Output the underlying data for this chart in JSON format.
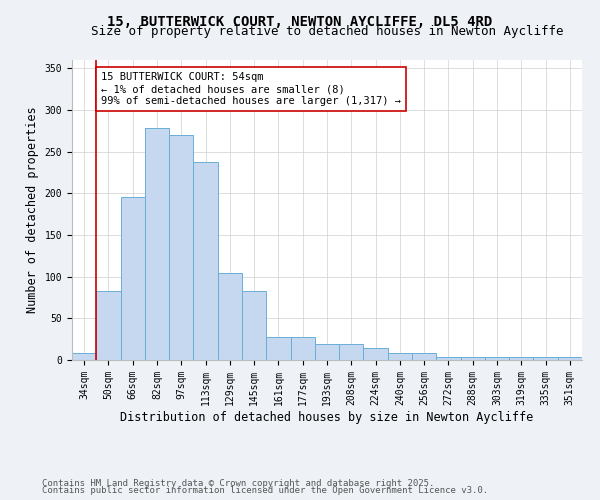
{
  "title1": "15, BUTTERWICK COURT, NEWTON AYCLIFFE, DL5 4RD",
  "title2": "Size of property relative to detached houses in Newton Aycliffe",
  "xlabel": "Distribution of detached houses by size in Newton Aycliffe",
  "ylabel": "Number of detached properties",
  "categories": [
    "34sqm",
    "50sqm",
    "66sqm",
    "82sqm",
    "97sqm",
    "113sqm",
    "129sqm",
    "145sqm",
    "161sqm",
    "177sqm",
    "193sqm",
    "208sqm",
    "224sqm",
    "240sqm",
    "256sqm",
    "272sqm",
    "288sqm",
    "303sqm",
    "319sqm",
    "335sqm",
    "351sqm"
  ],
  "values": [
    8,
    83,
    196,
    278,
    270,
    238,
    104,
    83,
    28,
    28,
    19,
    19,
    15,
    8,
    8,
    4,
    4,
    4,
    4,
    4,
    4
  ],
  "bar_color": "#c5d8f0",
  "bar_edge_color": "#6aaed6",
  "marker_bar_index": 1,
  "marker_color": "#cc0000",
  "annotation_text": "15 BUTTERWICK COURT: 54sqm\n← 1% of detached houses are smaller (8)\n99% of semi-detached houses are larger (1,317) →",
  "annotation_box_color": "#ffffff",
  "annotation_border_color": "#cc0000",
  "ylim": [
    0,
    360
  ],
  "yticks": [
    0,
    50,
    100,
    150,
    200,
    250,
    300,
    350
  ],
  "footer1": "Contains HM Land Registry data © Crown copyright and database right 2025.",
  "footer2": "Contains public sector information licensed under the Open Government Licence v3.0.",
  "bg_color": "#eef2f7",
  "plot_bg_color": "#ffffff",
  "title_fontsize": 10,
  "subtitle_fontsize": 9,
  "axis_label_fontsize": 8.5,
  "tick_fontsize": 7,
  "annotation_fontsize": 7.5,
  "footer_fontsize": 6.5
}
